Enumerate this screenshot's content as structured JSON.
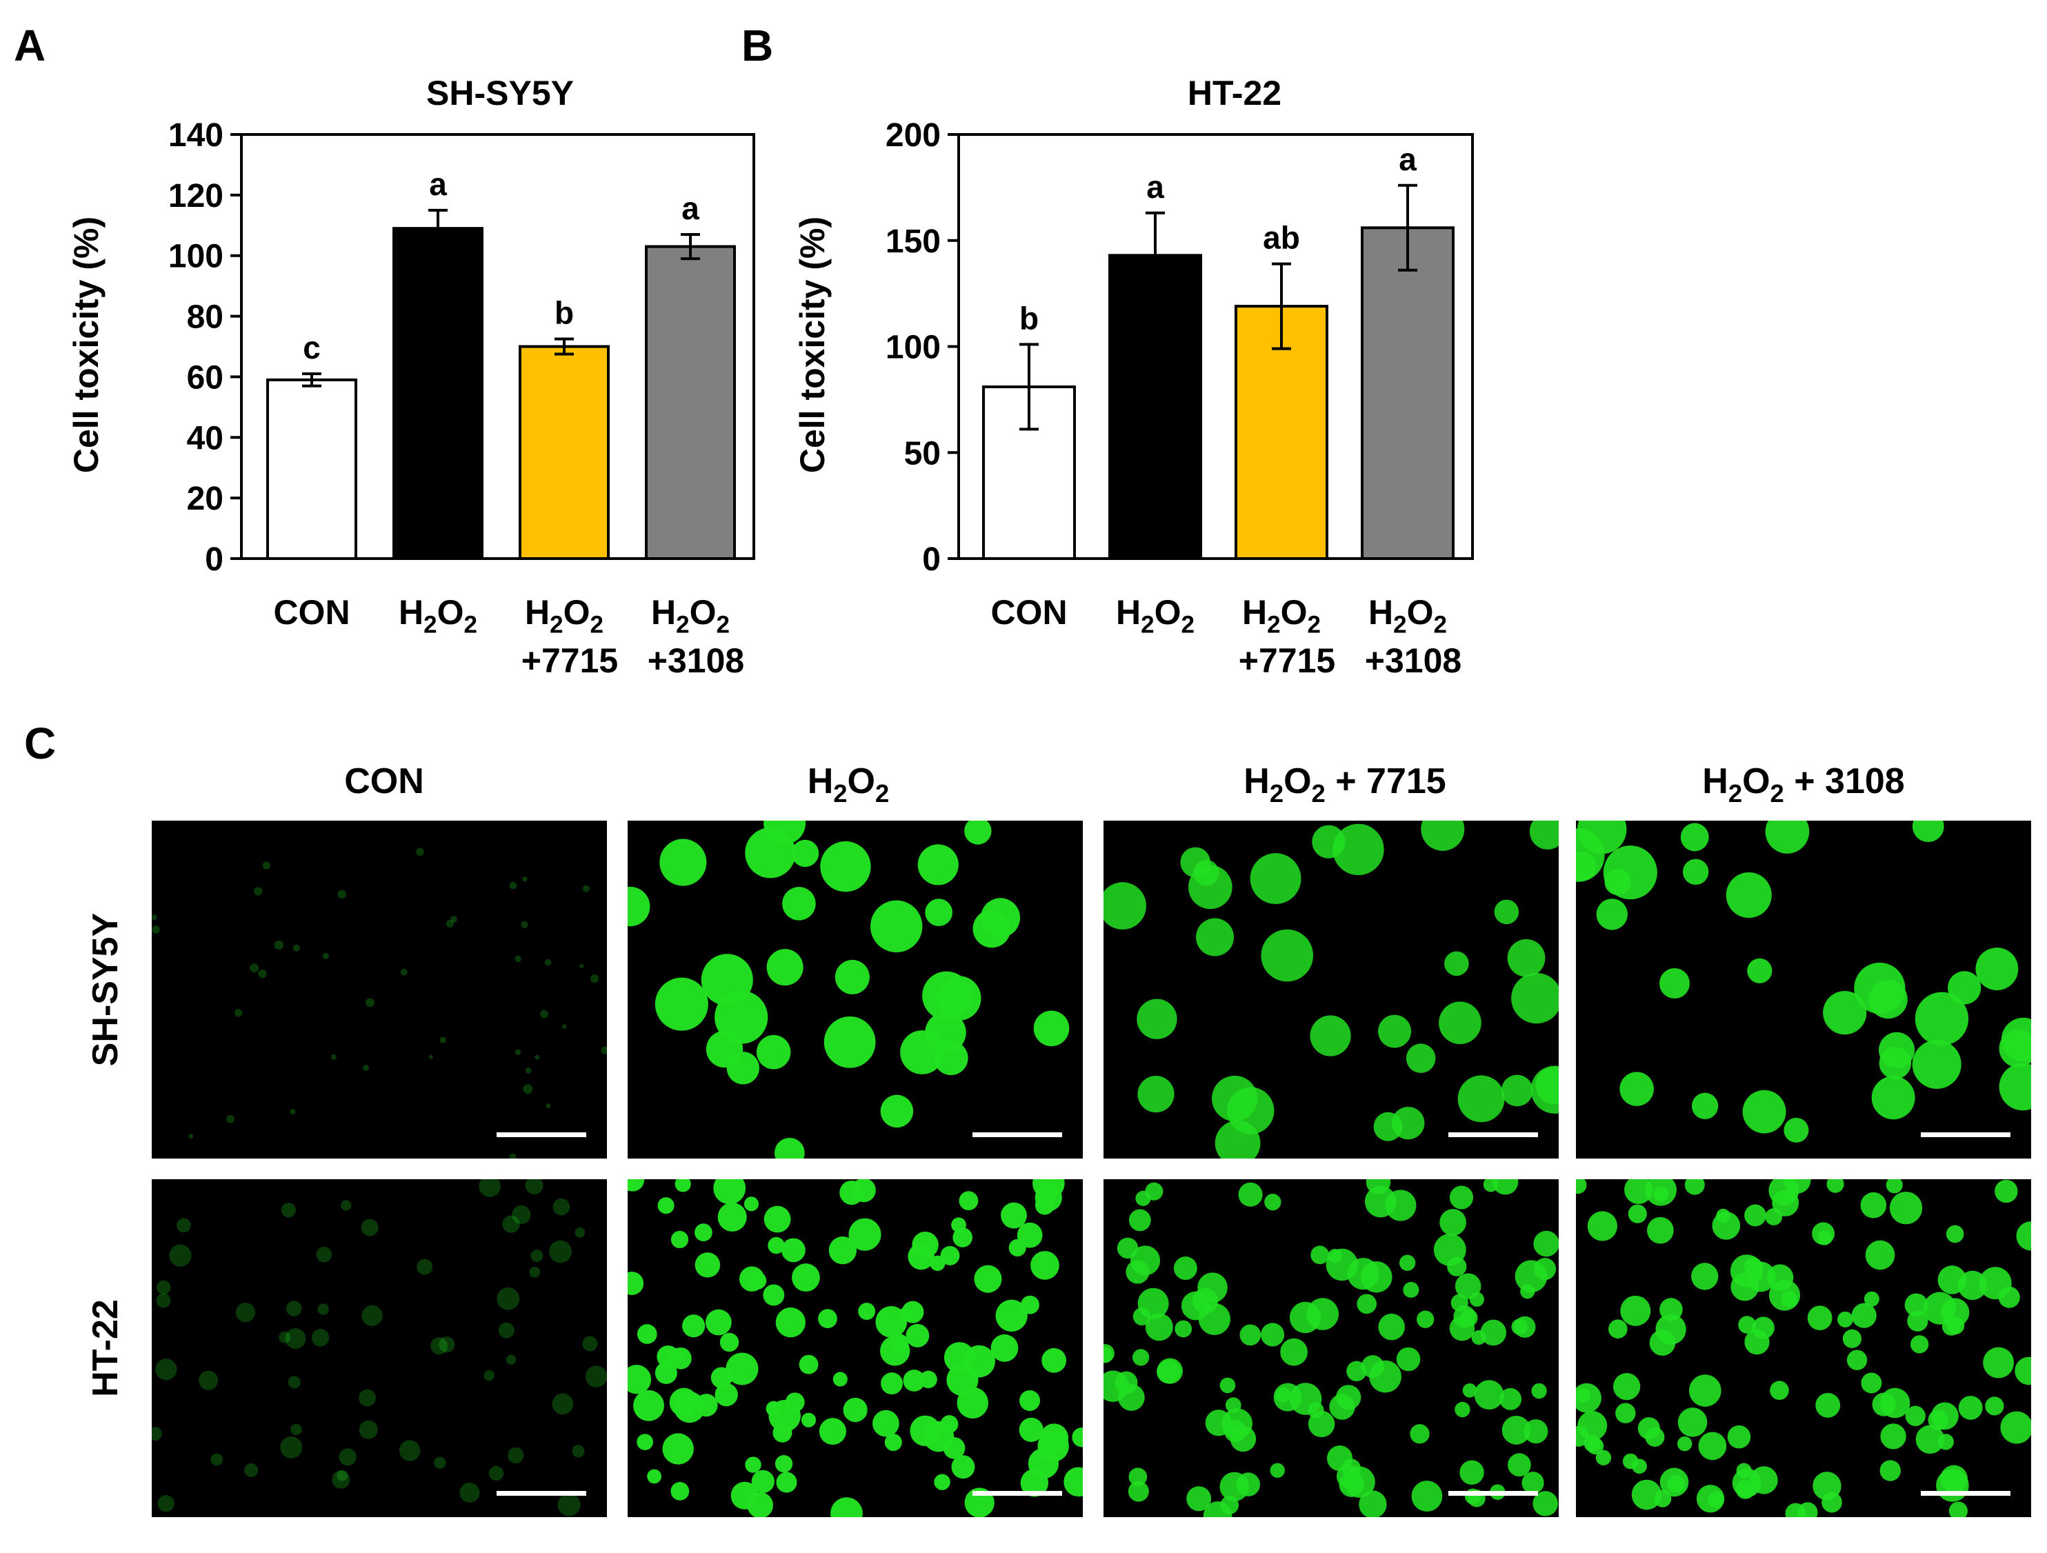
{
  "panel_labels": {
    "a": "A",
    "b": "B",
    "c": "C"
  },
  "colors": {
    "con": "#ffffff",
    "h2o2": "#000000",
    "h2o2_7715": "#ffc000",
    "h2o2_3108": "#808080",
    "fluor_bg": "#000000",
    "fluor": "#22e022"
  },
  "chart_data": [
    {
      "type": "bar",
      "title": "SH-SY5Y",
      "ylabel": "Cell toxicity (%)",
      "ylim": [
        0,
        140
      ],
      "yticks": [
        0,
        20,
        40,
        60,
        80,
        100,
        120,
        140
      ],
      "grid": false,
      "legend": "none",
      "categories": [
        {
          "main": "CON",
          "extra": ""
        },
        {
          "main": "H",
          "sub1": "2",
          "mid": "O",
          "sub2": "2",
          "extra": ""
        },
        {
          "main": "H",
          "sub1": "2",
          "mid": "O",
          "sub2": "2",
          "extra": "+7715"
        },
        {
          "main": "H",
          "sub1": "2",
          "mid": "O",
          "sub2": "2",
          "extra": "+3108"
        }
      ],
      "values": [
        59,
        109,
        70,
        103
      ],
      "errors": [
        2,
        6,
        2.5,
        4
      ],
      "significance": [
        "c",
        "a",
        "b",
        "a"
      ]
    },
    {
      "type": "bar",
      "title": "HT-22",
      "ylabel": "Cell toxicity (%)",
      "ylim": [
        0,
        200
      ],
      "yticks": [
        0,
        50,
        100,
        150,
        200
      ],
      "grid": false,
      "legend": "none",
      "categories": [
        {
          "main": "CON",
          "extra": ""
        },
        {
          "main": "H",
          "sub1": "2",
          "mid": "O",
          "sub2": "2",
          "extra": ""
        },
        {
          "main": "H",
          "sub1": "2",
          "mid": "O",
          "sub2": "2",
          "extra": "+7715"
        },
        {
          "main": "H",
          "sub1": "2",
          "mid": "O",
          "sub2": "2",
          "extra": "+3108"
        }
      ],
      "values": [
        81,
        143,
        119,
        156
      ],
      "errors": [
        20,
        20,
        20,
        20
      ],
      "significance": [
        "b",
        "a",
        "ab",
        "a"
      ]
    }
  ],
  "micrographs": {
    "columns": [
      {
        "main": "CON",
        "rest": ""
      },
      {
        "main": "H",
        "sub1": "2",
        "mid": "O",
        "sub2": "2",
        "rest": ""
      },
      {
        "main": "H",
        "sub1": "2",
        "mid": "O",
        "sub2": "2",
        "rest": " + 7715"
      },
      {
        "main": "H",
        "sub1": "2",
        "mid": "O",
        "sub2": "2",
        "rest": " + 3108"
      }
    ],
    "rows": [
      "SH-SY5Y",
      "HT-22"
    ],
    "fluorescence_levels": [
      [
        0.05,
        0.95,
        0.7,
        0.85
      ],
      [
        0.06,
        0.95,
        0.75,
        0.8
      ]
    ]
  }
}
